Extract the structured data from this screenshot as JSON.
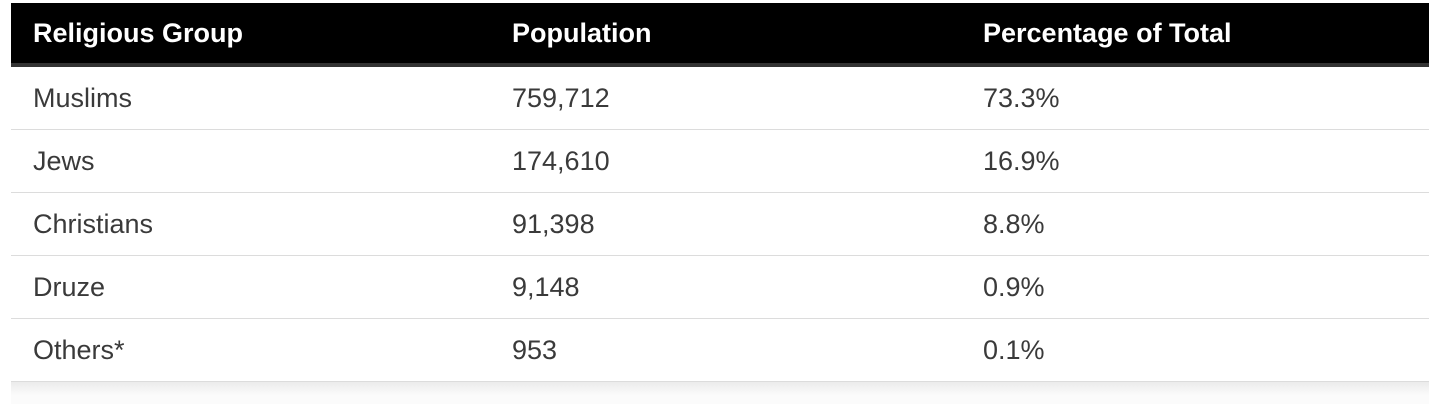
{
  "table": {
    "columns": [
      {
        "label": "Religious Group"
      },
      {
        "label": "Population"
      },
      {
        "label": "Percentage of Total"
      }
    ],
    "rows": [
      {
        "group": "Muslims",
        "population": "759,712",
        "percentage": "73.3%"
      },
      {
        "group": "Jews",
        "population": "174,610",
        "percentage": "16.9%"
      },
      {
        "group": "Christians",
        "population": "91,398",
        "percentage": "8.8%"
      },
      {
        "group": "Druze",
        "population": "9,148",
        "percentage": "0.9%"
      },
      {
        "group": "Others*",
        "population": "953",
        "percentage": "0.1%"
      }
    ]
  },
  "colors": {
    "header_bg": "#000000",
    "header_text": "#ffffff",
    "header_border": "#333333",
    "body_text": "#3a3a3a",
    "divider": "#dcdcdc"
  },
  "chart_data": {
    "type": "table",
    "title": "",
    "columns": [
      "Religious Group",
      "Population",
      "Percentage of Total"
    ],
    "categories": [
      "Muslims",
      "Jews",
      "Christians",
      "Druze",
      "Others*"
    ],
    "series": [
      {
        "name": "Population",
        "values": [
          759712,
          174610,
          91398,
          9148,
          953
        ]
      },
      {
        "name": "Percentage of Total",
        "values": [
          73.3,
          16.9,
          8.8,
          0.9,
          0.1
        ]
      }
    ]
  }
}
